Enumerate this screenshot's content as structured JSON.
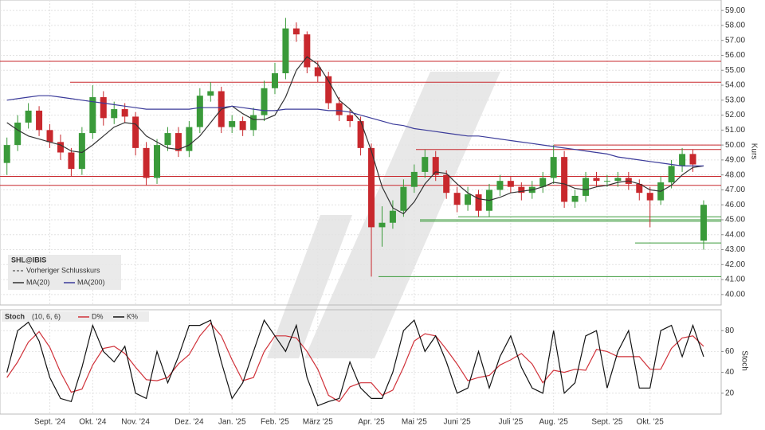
{
  "chart_data": {
    "type": "candlestick",
    "legend": {
      "instrument": "SHL@IBIS",
      "entries": [
        "Vorheriger Schlusskurs",
        "MA(20)",
        "MA(200)"
      ]
    },
    "y_label": "Kurs",
    "categories": [
      null,
      null,
      null,
      null,
      "Sept. '24",
      null,
      null,
      null,
      "Okt. '24",
      null,
      null,
      null,
      "Nov. '24",
      null,
      null,
      null,
      null,
      "Dez. '24",
      null,
      null,
      null,
      "Jan. '25",
      null,
      null,
      null,
      "Feb. '25",
      null,
      null,
      null,
      "März '25",
      null,
      null,
      null,
      null,
      "Apr. '25",
      null,
      null,
      null,
      "Mai '25",
      null,
      null,
      null,
      "Juni '25",
      null,
      null,
      null,
      null,
      "Juli '25",
      null,
      null,
      null,
      "Aug. '25",
      null,
      null,
      null,
      null,
      "Sept. '25",
      null,
      null,
      null,
      "Okt. '25",
      null,
      null,
      null,
      null,
      null
    ],
    "open": [
      48.8,
      50.0,
      51.5,
      52.3,
      51.0,
      50.2,
      49.5,
      48.4,
      50.8,
      53.2,
      51.8,
      52.4,
      51.9,
      49.8,
      47.8,
      50.0,
      50.8,
      49.6,
      51.2,
      53.3,
      53.6,
      51.2,
      51.6,
      51.0,
      52.0,
      53.8,
      54.8,
      57.8,
      57.4,
      55.2,
      54.6,
      52.8,
      52.0,
      51.6,
      49.8,
      44.5,
      44.8,
      45.6,
      47.2,
      48.2,
      49.2,
      48.0,
      46.8,
      46.0,
      46.7,
      45.6,
      47.0,
      47.6,
      47.2,
      46.8,
      47.2,
      47.8,
      49.2,
      46.2,
      46.6,
      47.8,
      47.6,
      47.6,
      47.8,
      47.4,
      46.8,
      46.3,
      47.5,
      48.6,
      49.4,
      43.6
    ],
    "high": [
      50.5,
      52.0,
      52.8,
      52.6,
      51.4,
      50.7,
      49.8,
      51.2,
      54.0,
      53.6,
      52.9,
      52.8,
      52.2,
      50.2,
      50.4,
      51.2,
      51.2,
      51.6,
      53.8,
      54.2,
      53.9,
      52.0,
      51.9,
      52.5,
      54.3,
      55.5,
      58.5,
      58.2,
      57.6,
      55.6,
      54.9,
      53.2,
      52.4,
      51.9,
      50.1,
      45.9,
      46.3,
      47.7,
      48.7,
      49.7,
      49.6,
      48.3,
      47.2,
      47.2,
      47.0,
      47.4,
      48.0,
      47.9,
      47.5,
      47.6,
      48.2,
      50.0,
      49.6,
      47.0,
      48.2,
      48.2,
      48.0,
      48.2,
      48.2,
      47.7,
      47.2,
      47.9,
      49.0,
      49.8,
      49.7,
      46.3
    ],
    "low": [
      48.0,
      49.6,
      51.1,
      50.6,
      49.8,
      49.0,
      47.9,
      48.0,
      50.4,
      51.3,
      51.4,
      51.5,
      49.3,
      47.3,
      47.4,
      49.6,
      49.2,
      49.2,
      50.8,
      52.9,
      50.8,
      50.8,
      50.6,
      50.6,
      51.6,
      53.4,
      54.4,
      56.9,
      54.8,
      54.2,
      52.4,
      51.6,
      51.2,
      49.3,
      41.2,
      43.2,
      44.4,
      45.2,
      46.8,
      47.8,
      47.6,
      46.4,
      45.5,
      45.6,
      45.2,
      45.2,
      46.6,
      46.8,
      46.3,
      46.4,
      46.8,
      47.4,
      45.8,
      45.8,
      46.2,
      47.2,
      47.2,
      47.2,
      47.0,
      46.3,
      44.5,
      46.0,
      47.1,
      48.2,
      48.2,
      43.0
    ],
    "close": [
      50.0,
      51.5,
      52.3,
      51.0,
      50.2,
      49.5,
      48.4,
      50.8,
      53.2,
      51.8,
      52.4,
      51.9,
      49.8,
      47.8,
      50.0,
      50.8,
      49.6,
      51.2,
      53.3,
      53.6,
      51.2,
      51.6,
      51.0,
      52.0,
      53.8,
      54.8,
      57.8,
      57.4,
      55.2,
      54.6,
      52.8,
      52.0,
      51.6,
      49.8,
      44.5,
      44.8,
      45.6,
      47.2,
      48.2,
      49.2,
      48.0,
      46.8,
      46.0,
      46.7,
      45.6,
      47.0,
      47.6,
      47.2,
      46.8,
      47.2,
      47.8,
      49.2,
      46.2,
      46.6,
      47.8,
      47.6,
      47.6,
      47.8,
      47.4,
      46.8,
      46.3,
      47.5,
      48.6,
      49.4,
      48.7,
      46.0
    ],
    "up_color": "#3a9a3a",
    "down_color": "#c8282d",
    "series": [
      {
        "name": "MA(20)",
        "color": "#333333",
        "values": [
          51.5,
          51.0,
          50.6,
          50.4,
          50.2,
          50.0,
          49.6,
          49.5,
          50.0,
          50.6,
          51.2,
          51.5,
          51.4,
          50.6,
          50.2,
          49.8,
          49.7,
          50.0,
          50.6,
          51.5,
          52.4,
          52.6,
          52.1,
          51.7,
          51.7,
          52.0,
          53.2,
          55.0,
          55.9,
          55.4,
          54.3,
          53.0,
          52.4,
          51.6,
          49.6,
          47.2,
          45.8,
          45.4,
          46.2,
          47.4,
          48.2,
          48.1,
          47.4,
          46.8,
          46.4,
          46.3,
          46.5,
          46.8,
          46.9,
          47.0,
          47.2,
          47.5,
          47.4,
          47.1,
          47.0,
          47.2,
          47.3,
          47.5,
          47.6,
          47.4,
          47.0,
          46.9,
          47.3,
          48.0,
          48.5,
          48.6
        ]
      },
      {
        "name": "MA(200)",
        "color": "#3b3b9a",
        "values": [
          53.0,
          53.1,
          53.2,
          53.3,
          53.3,
          53.2,
          53.1,
          53.0,
          52.9,
          52.8,
          52.7,
          52.6,
          52.5,
          52.4,
          52.4,
          52.4,
          52.4,
          52.4,
          52.5,
          52.5,
          52.5,
          52.6,
          52.5,
          52.4,
          52.3,
          52.3,
          52.4,
          52.4,
          52.4,
          52.4,
          52.3,
          52.3,
          52.2,
          52.0,
          51.8,
          51.6,
          51.4,
          51.3,
          51.1,
          51.0,
          50.9,
          50.8,
          50.7,
          50.6,
          50.6,
          50.5,
          50.4,
          50.3,
          50.2,
          50.1,
          50.0,
          49.9,
          49.8,
          49.7,
          49.6,
          49.5,
          49.4,
          49.2,
          49.1,
          49.0,
          48.9,
          48.8,
          48.7,
          48.6,
          48.6,
          48.6
        ]
      }
    ],
    "levels": [
      {
        "value": 55.6,
        "color": "#c8282d"
      },
      {
        "value": 54.2,
        "color": "#c8282d"
      },
      {
        "value": 50.0,
        "color": "#c8282d"
      },
      {
        "value": 49.7,
        "color": "#c8282d"
      },
      {
        "value": 47.9,
        "color": "#c8282d"
      },
      {
        "value": 47.3,
        "color": "#c8282d"
      },
      {
        "value": 45.2,
        "color": "#3a9a3a"
      },
      {
        "value": 45.0,
        "color": "#3a9a3a"
      },
      {
        "value": 44.9,
        "color": "#3a9a3a"
      },
      {
        "value": 43.45,
        "color": "#3a9a3a"
      },
      {
        "value": 41.2,
        "color": "#3a9a3a"
      }
    ],
    "ylim": [
      39.3,
      59.7
    ],
    "yticks": [
      {
        "value": 40,
        "label": "40.00"
      },
      {
        "value": 41,
        "label": "41.00"
      },
      {
        "value": 42,
        "label": "42.00"
      },
      {
        "value": 43,
        "label": "43.00"
      },
      {
        "value": 44,
        "label": "44.00"
      },
      {
        "value": 45,
        "label": "45.00"
      },
      {
        "value": 46,
        "label": "46.00"
      },
      {
        "value": 47,
        "label": "47.00"
      },
      {
        "value": 48,
        "label": "48.00"
      },
      {
        "value": 49,
        "label": "49.00"
      },
      {
        "value": 50,
        "label": "50.00"
      },
      {
        "value": 51,
        "label": "51.00"
      },
      {
        "value": 52,
        "label": "52.00"
      },
      {
        "value": 53,
        "label": "53.00"
      },
      {
        "value": 54,
        "label": "54.00"
      },
      {
        "value": 55,
        "label": "55.00"
      },
      {
        "value": 56,
        "label": "56.00"
      },
      {
        "value": 57,
        "label": "57.00"
      },
      {
        "value": 58,
        "label": "58.00"
      },
      {
        "value": 59,
        "label": "59.00"
      }
    ],
    "grid": true,
    "stoch": {
      "title": "Stoch",
      "params": "(10, 6, 6)",
      "y_label": "Stoch",
      "ylim": [
        0,
        100
      ],
      "yticks": [
        20,
        40,
        60,
        80
      ],
      "series": [
        {
          "name": "D%",
          "color": "#d0323a",
          "values": [
            35,
            50,
            69,
            79,
            64,
            40,
            21,
            24,
            47,
            63,
            65,
            58,
            45,
            33,
            32,
            35,
            48,
            57,
            75,
            87,
            75,
            52,
            32,
            35,
            60,
            75,
            75,
            73,
            60,
            43,
            18,
            12,
            26,
            30,
            30,
            18,
            23,
            45,
            70,
            77,
            75,
            62,
            48,
            32,
            35,
            37,
            47,
            52,
            58,
            48,
            30,
            42,
            40,
            43,
            42,
            62,
            60,
            55,
            55,
            55,
            43,
            43,
            63,
            73,
            75,
            65
          ]
        },
        {
          "name": "K%",
          "color": "#111111",
          "values": [
            40,
            80,
            88,
            70,
            35,
            15,
            12,
            45,
            85,
            60,
            50,
            65,
            20,
            15,
            60,
            30,
            55,
            85,
            85,
            90,
            50,
            15,
            30,
            60,
            90,
            75,
            60,
            85,
            35,
            8,
            12,
            15,
            50,
            25,
            15,
            15,
            40,
            80,
            90,
            60,
            75,
            50,
            20,
            25,
            60,
            25,
            55,
            75,
            45,
            25,
            20,
            80,
            20,
            30,
            75,
            80,
            25,
            60,
            80,
            25,
            25,
            80,
            85,
            55,
            85,
            55
          ]
        }
      ]
    }
  }
}
